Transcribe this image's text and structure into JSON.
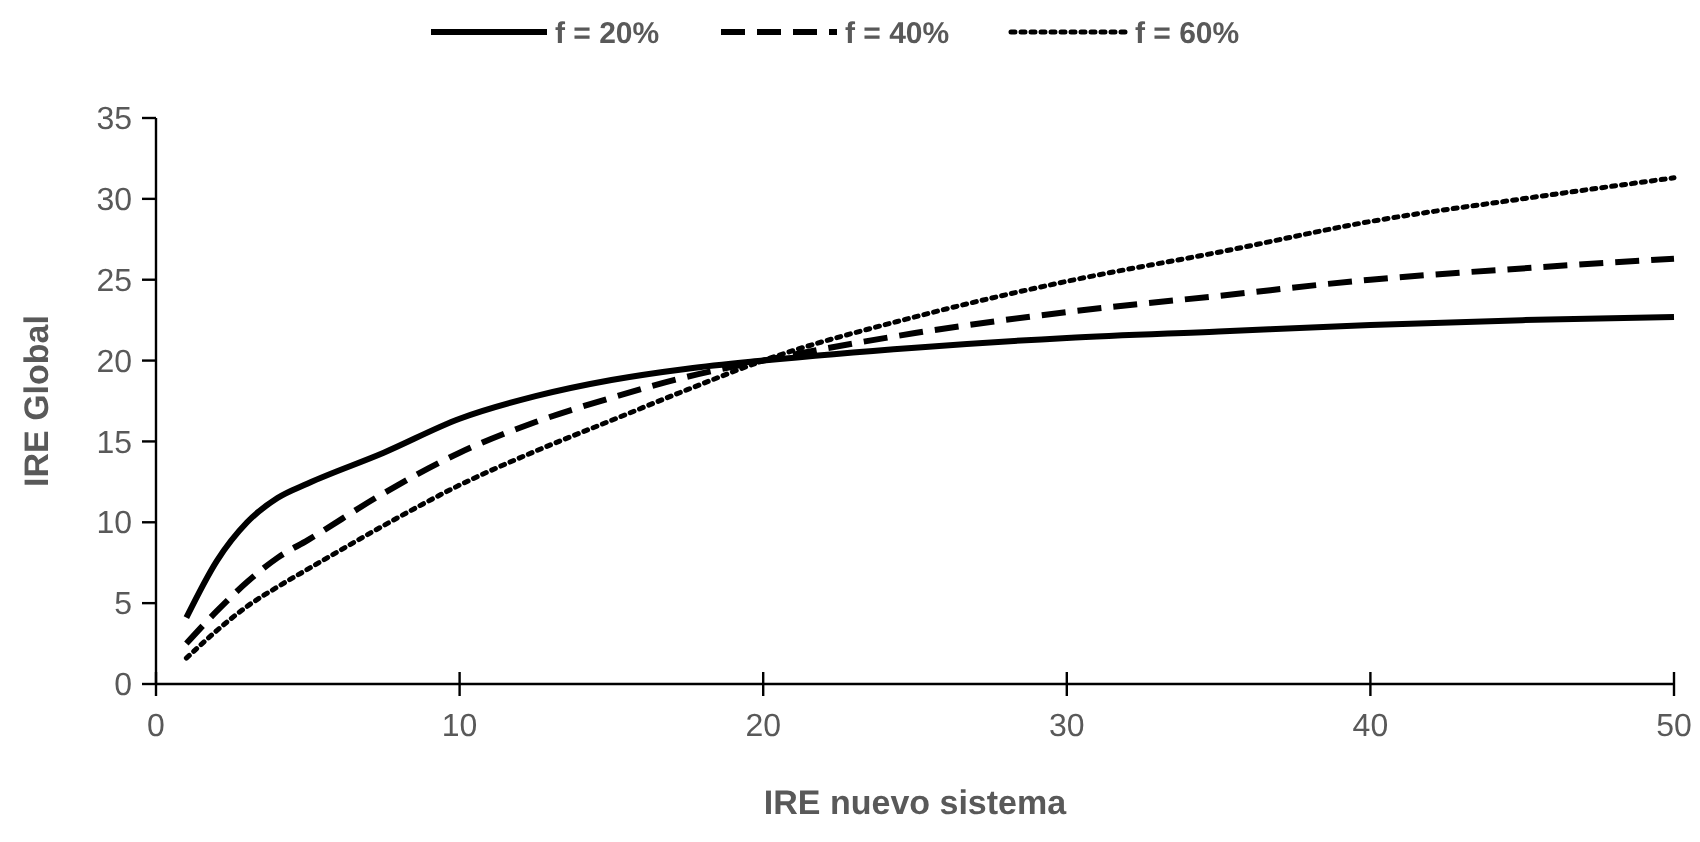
{
  "chart_data": {
    "type": "line",
    "xlabel": "IRE nuevo sistema",
    "ylabel": "IRE Global",
    "x": [
      1,
      2,
      3,
      4,
      5,
      7.5,
      10,
      12.5,
      15,
      17.5,
      20,
      25,
      30,
      35,
      40,
      45,
      50
    ],
    "series": [
      {
        "name": "f = 20%",
        "color": "#000000",
        "line_style": "solid",
        "values": [
          4.1,
          7.6,
          10.0,
          11.5,
          12.4,
          14.3,
          16.4,
          17.8,
          18.8,
          19.5,
          20.0,
          20.8,
          21.4,
          21.8,
          22.2,
          22.5,
          22.7
        ]
      },
      {
        "name": "f = 40%",
        "color": "#000000",
        "line_style": "dashed",
        "values": [
          2.5,
          4.5,
          6.3,
          7.8,
          8.9,
          11.8,
          14.3,
          16.2,
          17.7,
          19.0,
          20.0,
          21.7,
          23.0,
          24.0,
          25.0,
          25.7,
          26.3
        ]
      },
      {
        "name": "f = 60%",
        "color": "#000000",
        "line_style": "dotted",
        "values": [
          1.6,
          3.3,
          4.8,
          6.0,
          7.1,
          9.8,
          12.3,
          14.4,
          16.3,
          18.2,
          20.0,
          22.7,
          24.9,
          26.7,
          28.6,
          30.0,
          31.3
        ]
      }
    ],
    "xlim": [
      0,
      50
    ],
    "xticks": [
      0,
      10,
      20,
      30,
      40,
      50
    ],
    "ylim": [
      0,
      35
    ],
    "yticks": [
      0,
      5,
      10,
      15,
      20,
      25,
      30,
      35
    ],
    "grid": false,
    "legend": "top",
    "marker": "none"
  }
}
